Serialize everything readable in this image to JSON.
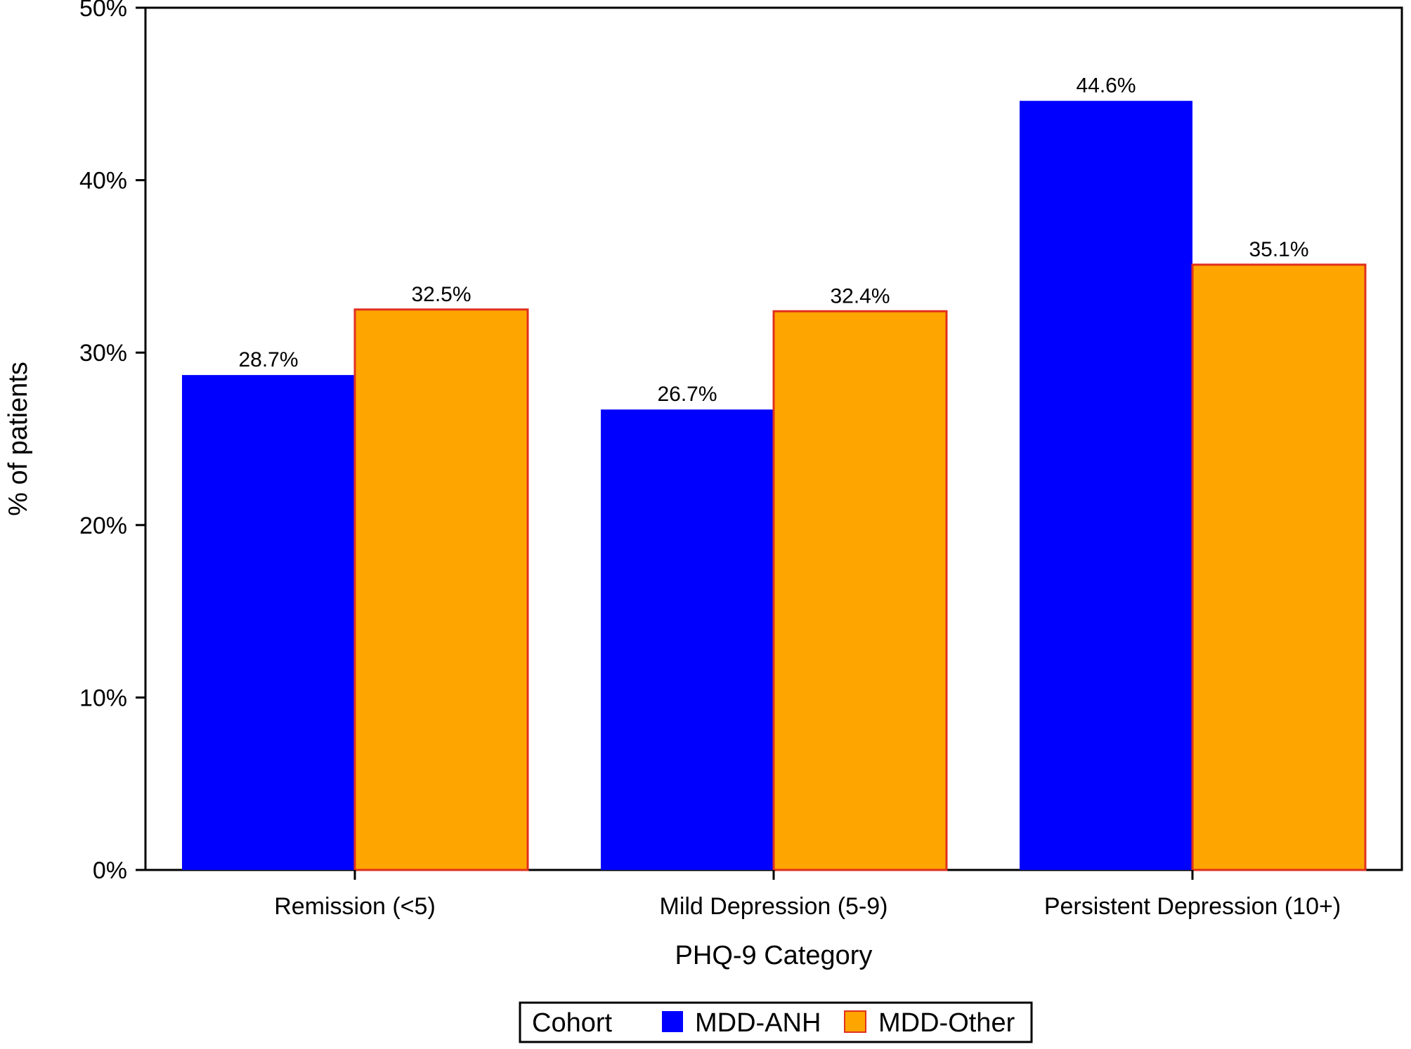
{
  "chart_data": {
    "type": "bar",
    "title": "",
    "xlabel": "PHQ-9 Category",
    "ylabel": "% of patients",
    "categories": [
      "Remission (<5)",
      "Mild Depression (5-9)",
      "Persistent Depression (10+)"
    ],
    "series": [
      {
        "name": "MDD-ANH",
        "color": "#0000ff",
        "values": [
          28.7,
          26.7,
          44.6
        ],
        "labels": [
          "28.7%",
          "26.7%",
          "44.6%"
        ]
      },
      {
        "name": "MDD-Other",
        "color": "#ffa500",
        "outline": "#e0301e",
        "values": [
          32.5,
          32.4,
          35.1
        ],
        "labels": [
          "32.5%",
          "32.4%",
          "35.1%"
        ]
      }
    ],
    "ylim": [
      0,
      50
    ],
    "yticks": [
      0,
      10,
      20,
      30,
      40,
      50
    ],
    "ytick_labels": [
      "0%",
      "10%",
      "20%",
      "30%",
      "40%",
      "50%"
    ],
    "grid": false,
    "legend": {
      "title": "Cohort",
      "placement": "bottom-center"
    }
  }
}
